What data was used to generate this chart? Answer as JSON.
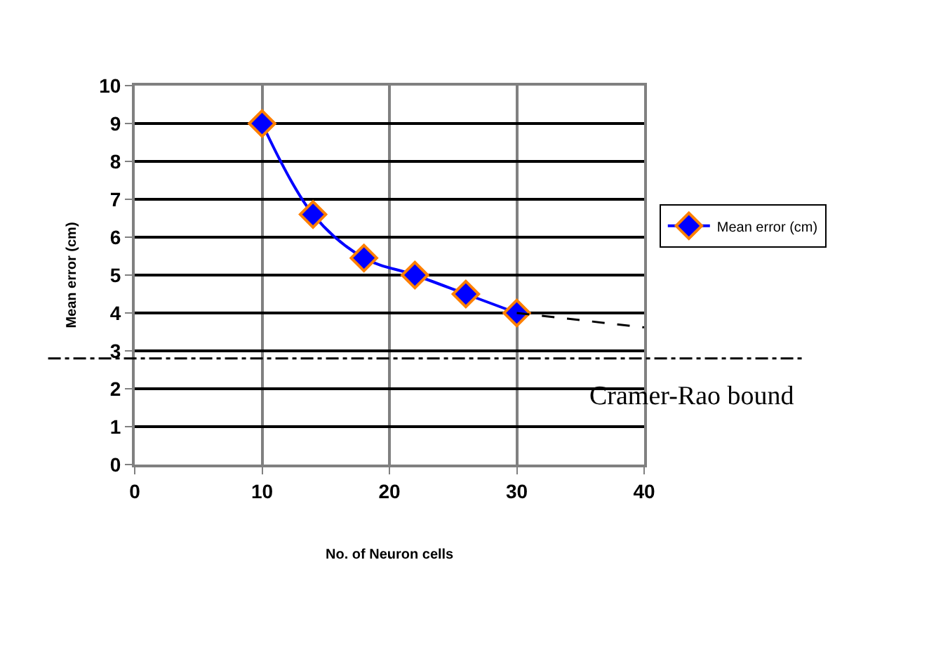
{
  "chart_data": {
    "type": "line",
    "xlabel": "No. of Neuron cells",
    "ylabel": "Mean error (cm)",
    "xlim": [
      0,
      40
    ],
    "xticks": [
      0,
      10,
      20,
      30,
      40
    ],
    "ylim": [
      0,
      10
    ],
    "yticks": [
      0,
      1,
      2,
      3,
      4,
      5,
      6,
      7,
      8,
      9,
      10
    ],
    "grid": true,
    "legend": "right",
    "marker": "diamond",
    "line_style": "solid",
    "series": [
      {
        "name": "Mean error (cm)",
        "color": "#0000ff",
        "x": [
          10,
          14,
          18,
          22,
          26,
          30
        ],
        "values": [
          9,
          6.6,
          5.45,
          5,
          4.5,
          4
        ]
      },
      {
        "type": "line",
        "color": "#000000",
        "x": [
          30,
          40
        ],
        "values": [
          4,
          3.62
        ],
        "marker": "none",
        "line_style": "dashed"
      }
    ],
    "ref_lines": [
      {
        "axis": "y",
        "value": 2.8,
        "label": "Cramer-Rao bound",
        "line_style": "dashdot",
        "color": "#000000"
      }
    ]
  }
}
